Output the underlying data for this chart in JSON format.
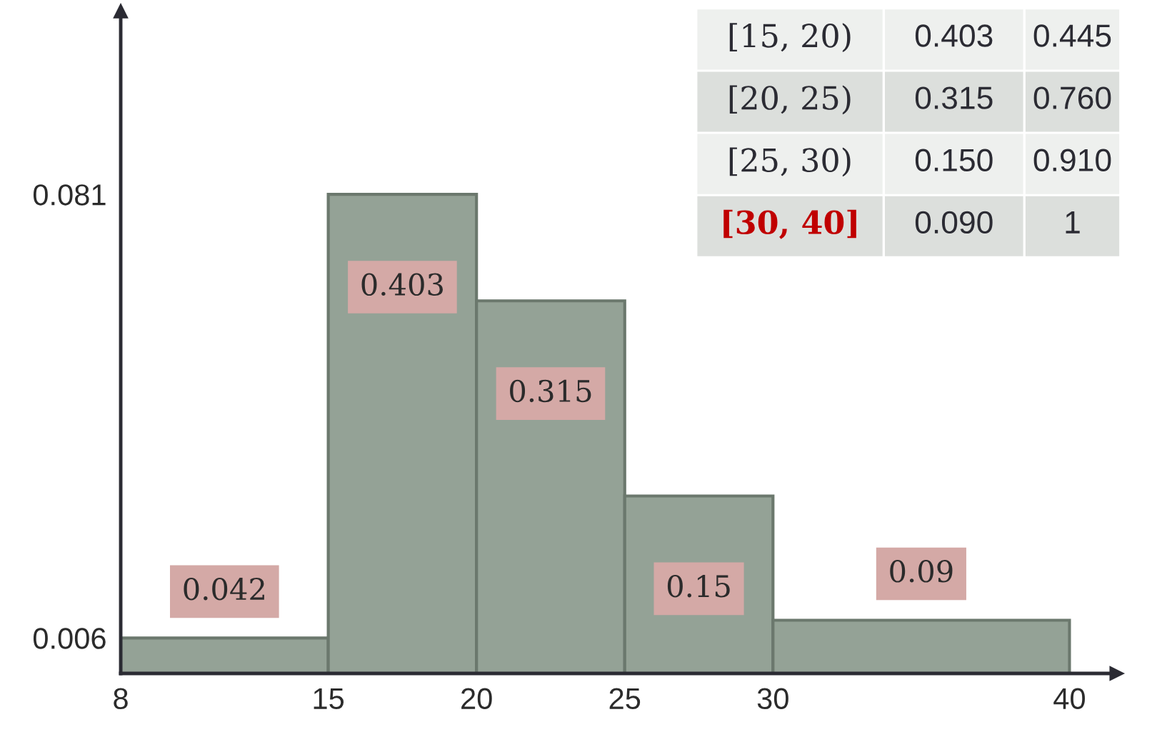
{
  "chart_data": {
    "type": "histogram",
    "bins": [
      8,
      15,
      20,
      25,
      30,
      40
    ],
    "values": [
      0.006,
      0.081,
      0.063,
      0.03,
      0.009
    ],
    "color": "#94a296",
    "xlim": [
      8,
      41.6
    ],
    "ylim": [
      0,
      0.112
    ],
    "xticks": [
      8,
      15,
      20,
      25,
      30,
      40
    ],
    "yticks": [
      0.006,
      0.081
    ],
    "grid": false,
    "annotations": [
      {
        "text": "0.042",
        "x": 11.5,
        "y": 0.006
      },
      {
        "text": "0.403",
        "x": 17.5,
        "y": 0.081
      },
      {
        "text": "0.315",
        "x": 22.5,
        "y": 0.063
      },
      {
        "text": "0.15",
        "x": 27.5,
        "y": 0.03
      },
      {
        "text": "0.09",
        "x": 35,
        "y": 0.009
      },
      "[15, 20)",
      "0.403",
      "0.445",
      "[20, 25)",
      "0.315",
      "0.760",
      "[25, 30)",
      "0.150",
      "0.910",
      "[30, 40]",
      "0.090",
      "1"
    ]
  }
}
